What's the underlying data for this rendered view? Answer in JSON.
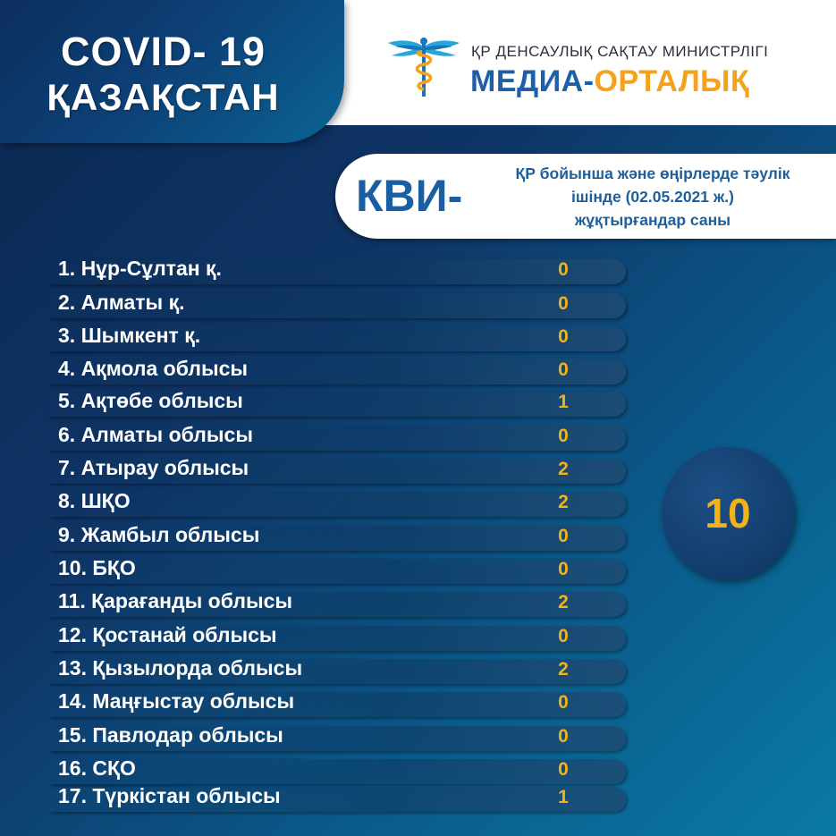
{
  "header": {
    "title": "COVID- 19",
    "country": "ҚАЗАҚСТАН",
    "ministry": "ҚР ДЕНСАУЛЫҚ САҚТАУ МИНИСТРЛІГІ",
    "media_part1": "МЕДИА-",
    "media_part2": "ОРТАЛЫҚ"
  },
  "banner": {
    "label": "КВИ-",
    "line1": "ҚР бойынша және өңірлерде тәулік",
    "line2": "ішінде (02.05.2021 ж.)",
    "line3": "жұқтырғандар саны"
  },
  "regions": [
    {
      "label": "1. Нұр-Сұлтан қ.",
      "value": "0"
    },
    {
      "label": "2. Алматы қ.",
      "value": "0"
    },
    {
      "label": "3. Шымкент қ.",
      "value": "0"
    },
    {
      "label": "4. Ақмола облысы",
      "value": "0"
    },
    {
      "label": "5. Ақтөбе облысы",
      "value": "1"
    },
    {
      "label": "6. Алматы облысы",
      "value": "0"
    },
    {
      "label": "7. Атырау облысы",
      "value": "2"
    },
    {
      "label": "8. ШҚО",
      "value": "2"
    },
    {
      "label": "9. Жамбыл облысы",
      "value": "0"
    },
    {
      "label": "10. БҚО",
      "value": "0"
    },
    {
      "label": "11. Қарағанды облысы",
      "value": "2"
    },
    {
      "label": "12. Қостанай облысы",
      "value": "0"
    },
    {
      "label": "13. Қызылорда облысы",
      "value": "2"
    },
    {
      "label": "14. Маңғыстау облысы",
      "value": "0"
    },
    {
      "label": "15. Павлодар облысы",
      "value": "0"
    },
    {
      "label": "16. СҚО",
      "value": "0"
    },
    {
      "label": "17. Түркістан облысы",
      "value": "1"
    }
  ],
  "total": "10",
  "colors": {
    "accent_gold": "#f2b318",
    "brand_blue": "#1e5fa8",
    "brand_orange": "#f4a11c"
  },
  "icons": {
    "logo": "caduceus-icon"
  }
}
